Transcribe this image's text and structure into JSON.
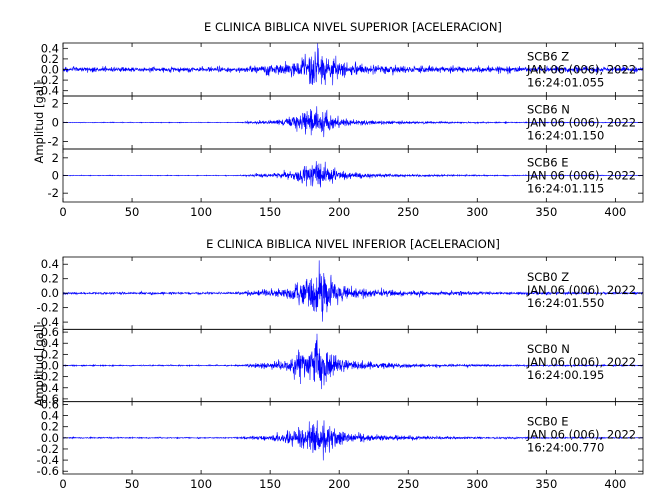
{
  "chart_data": [
    {
      "type": "line",
      "title": "E CLINICA BIBLICA NIVEL SUPERIOR [ACELERACION]",
      "ylabel": "Amplitud [gal]",
      "xlabel": "",
      "xlim": [
        0,
        420
      ],
      "x_ticks": [
        0,
        50,
        100,
        150,
        200,
        250,
        300,
        350,
        400
      ],
      "line_color": "#0000ff",
      "grid": false,
      "series": [
        {
          "station": "SCB6",
          "component": "Z",
          "date": "JAN 06 (006), 2022",
          "time": "16:24:01.055",
          "ylim": [
            -0.5,
            0.5
          ],
          "y_ticks": [
            0.4,
            0.2,
            0.0,
            -0.2,
            -0.4
          ],
          "y_tick_labels": [
            "0.4",
            "0.2",
            "0.0",
            "-0.2",
            "-0.4"
          ],
          "noise_level": 0.1,
          "onset_time": 125,
          "peak_time": 183,
          "peak_amplitude": 0.45
        },
        {
          "station": "SCB6",
          "component": "N",
          "date": "JAN 06 (006), 2022",
          "time": "16:24:01.150",
          "ylim": [
            -2.8,
            2.8
          ],
          "y_ticks": [
            2,
            0,
            -2
          ],
          "y_tick_labels": [
            "2",
            "0",
            "-2"
          ],
          "noise_level": 0.06,
          "onset_time": 125,
          "peak_time": 182,
          "peak_amplitude": 2.3
        },
        {
          "station": "SCB6",
          "component": "E",
          "date": "JAN 06 (006), 2022",
          "time": "16:24:01.115",
          "ylim": [
            -3,
            3
          ],
          "y_ticks": [
            2,
            0,
            -2
          ],
          "y_tick_labels": [
            "2",
            "0",
            "-2"
          ],
          "noise_level": 0.06,
          "onset_time": 125,
          "peak_time": 183,
          "peak_amplitude": 2.4
        }
      ]
    },
    {
      "type": "line",
      "title": "E CLINICA BIBLICA NIVEL INFERIOR [ACELERACION]",
      "ylabel": "Amplitud [gal]",
      "xlabel": "",
      "xlim": [
        0,
        420
      ],
      "x_ticks": [
        0,
        50,
        100,
        150,
        200,
        250,
        300,
        350,
        400
      ],
      "line_color": "#0000ff",
      "grid": false,
      "series": [
        {
          "station": "SCB0",
          "component": "Z",
          "date": "JAN 06 (006), 2022",
          "time": "16:24:01.550",
          "ylim": [
            -0.5,
            0.5
          ],
          "y_ticks": [
            0.4,
            0.2,
            0.0,
            -0.2,
            -0.4
          ],
          "y_tick_labels": [
            "0.4",
            "0.2",
            "0.0",
            "-0.2",
            "-0.4"
          ],
          "noise_level": 0.03,
          "onset_time": 125,
          "peak_time": 186,
          "peak_amplitude": 0.45
        },
        {
          "station": "SCB0",
          "component": "N",
          "date": "JAN 06 (006), 2022",
          "time": "16:24:00.195",
          "ylim": [
            -0.65,
            0.65
          ],
          "y_ticks": [
            0.6,
            0.4,
            0.2,
            0.0,
            -0.2,
            -0.4,
            -0.6
          ],
          "y_tick_labels": [
            "0.6",
            "0.4",
            "0.2",
            "0.0",
            "-0.2",
            "-0.4",
            "-0.6"
          ],
          "noise_level": 0.02,
          "onset_time": 125,
          "peak_time": 183,
          "peak_amplitude": 0.6
        },
        {
          "station": "SCB0",
          "component": "E",
          "date": "JAN 06 (006), 2022",
          "time": "16:24:00.770",
          "ylim": [
            -0.65,
            0.65
          ],
          "y_ticks": [
            0.6,
            0.4,
            0.2,
            0.0,
            -0.2,
            -0.4,
            -0.6
          ],
          "y_tick_labels": [
            "0.6",
            "0.4",
            "0.2",
            "0.0",
            "-0.2",
            "-0.4",
            "-0.6"
          ],
          "noise_level": 0.02,
          "onset_time": 125,
          "peak_time": 183,
          "peak_amplitude": 0.55
        }
      ]
    }
  ]
}
